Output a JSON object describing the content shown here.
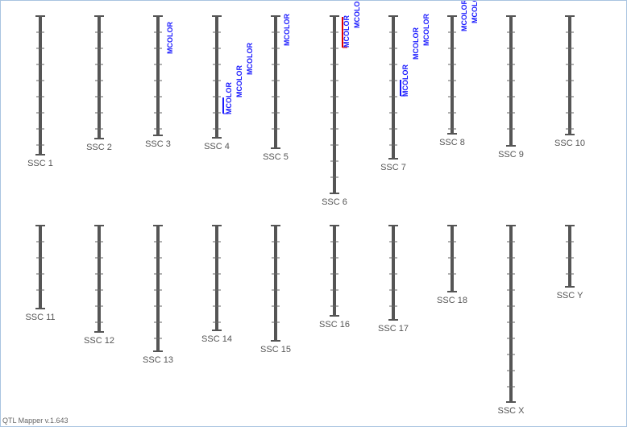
{
  "chromosomes": [
    {
      "label": "SSC 1"
    },
    {
      "label": "SSC 2"
    },
    {
      "label": "SSC 3"
    },
    {
      "label": "SSC 4"
    },
    {
      "label": "SSC 5"
    },
    {
      "label": "SSC 6"
    },
    {
      "label": "SSC 7"
    },
    {
      "label": "SSC 8"
    },
    {
      "label": "SSC 9"
    },
    {
      "label": "SSC 10"
    },
    {
      "label": "SSC 11"
    },
    {
      "label": "SSC 12"
    },
    {
      "label": "SSC 13"
    },
    {
      "label": "SSC 14"
    },
    {
      "label": "SSC 15"
    },
    {
      "label": "SSC 16"
    },
    {
      "label": "SSC 17"
    },
    {
      "label": "SSC 18"
    },
    {
      "label": "SSC X"
    },
    {
      "label": "SSC Y"
    }
  ],
  "qtls": [
    {
      "label": "MCOLOR"
    },
    {
      "label": "MCOLOR"
    },
    {
      "label": "MCOLOR"
    },
    {
      "label": "MCOLOR"
    },
    {
      "label": "MCOLOR"
    },
    {
      "label": "MCOLOR"
    },
    {
      "label": "MCOLOR"
    },
    {
      "label": "MCOLOR"
    },
    {
      "label": "MCOLOR"
    },
    {
      "label": "MCOLOR"
    },
    {
      "label": "MCOLOR"
    },
    {
      "label": "MCOLOR"
    }
  ],
  "footer": "QTL Mapper v.1.643"
}
